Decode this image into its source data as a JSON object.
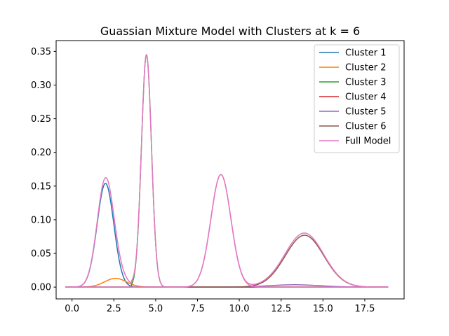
{
  "chart_data": {
    "type": "line",
    "title": "Guassian Mixture Model with Clusters at k = 6",
    "xlabel": "",
    "ylabel": "",
    "xlim": [
      -0.95,
      19.85
    ],
    "ylim": [
      -0.0175,
      0.366
    ],
    "x_ticks": [
      0.0,
      2.5,
      5.0,
      7.5,
      10.0,
      12.5,
      15.0,
      17.5
    ],
    "x_tick_labels": [
      "0.0",
      "2.5",
      "5.0",
      "7.5",
      "10.0",
      "12.5",
      "15.0",
      "17.5"
    ],
    "y_ticks": [
      0.0,
      0.05,
      0.1,
      0.15,
      0.2,
      0.25,
      0.3,
      0.35
    ],
    "y_tick_labels": [
      "0.00",
      "0.05",
      "0.10",
      "0.15",
      "0.20",
      "0.25",
      "0.30",
      "0.35"
    ],
    "x_range": [
      -0.4,
      18.9
    ],
    "grid": false,
    "legend_position": "top-right",
    "colors": {
      "cluster_1": "#1f77b4",
      "cluster_2": "#ff7f0e",
      "cluster_3": "#2ca02c",
      "cluster_4": "#d62728",
      "cluster_5": "#9467bd",
      "cluster_6": "#8c564b",
      "full_model": "#e377c2"
    },
    "series": [
      {
        "name": "Cluster 1",
        "color": "#1f77b4",
        "peak_x": 2.0,
        "peak_y": 0.154,
        "sd": 0.5,
        "window": [
          -0.4,
          3.75
        ]
      },
      {
        "name": "Cluster 2",
        "color": "#ff7f0e",
        "peak_x": 2.6,
        "peak_y": 0.013,
        "sd": 0.65,
        "window": null
      },
      {
        "name": "Cluster 3",
        "color": "#2ca02c",
        "peak_x": 4.45,
        "peak_y": 0.345,
        "sd": 0.3,
        "window": [
          3.55,
          18.9
        ]
      },
      {
        "name": "Cluster 4",
        "color": "#d62728",
        "peak_x": 12.0,
        "peak_y": 0.0,
        "sd": 1.0,
        "window": null
      },
      {
        "name": "Cluster 5",
        "color": "#9467bd",
        "peak_x": 13.3,
        "peak_y": 0.0035,
        "sd": 1.5,
        "window": null
      },
      {
        "name": "Cluster 6",
        "color": "#8c564b",
        "peak_x": 13.9,
        "peak_y": 0.077,
        "sd": 1.15,
        "window": null
      },
      {
        "name": "Cluster 7",
        "color": "#e377c2",
        "peak_x": 8.9,
        "peak_y": 0.167,
        "sd": 0.6,
        "window": null,
        "in_legend": false
      }
    ],
    "full_model": {
      "name": "Full Model",
      "color": "#e377c2"
    },
    "legend": [
      "Cluster 1",
      "Cluster 2",
      "Cluster 3",
      "Cluster 4",
      "Cluster 5",
      "Cluster 6",
      "Full Model"
    ]
  }
}
